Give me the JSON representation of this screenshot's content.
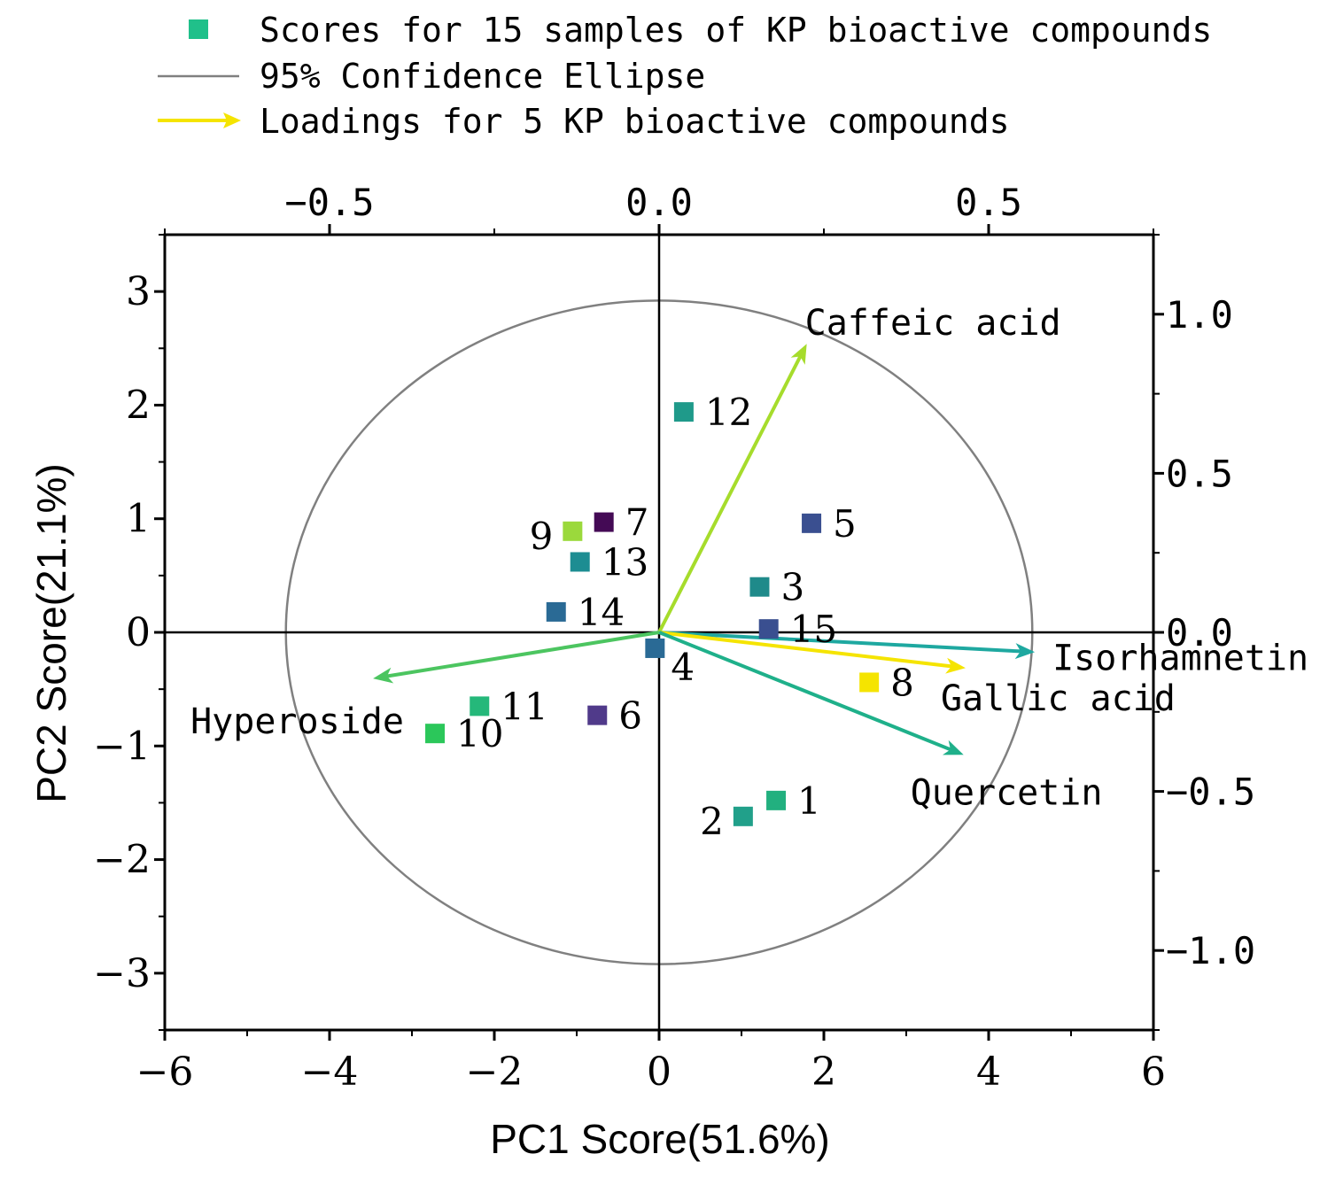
{
  "chart_data": {
    "type": "scatter",
    "title": "",
    "xlabel": "PC1 Score(51.6%)",
    "ylabel": "PC2 Score(21.1%)",
    "xlim": [
      -6,
      6
    ],
    "ylim": [
      -3.5,
      3.5
    ],
    "x_ticks": [
      -6,
      -4,
      -2,
      0,
      2,
      4,
      6
    ],
    "y_ticks": [
      -3,
      -2,
      -1,
      0,
      1,
      2,
      3
    ],
    "x_tick_labels": [
      "−6",
      "−4",
      "−2",
      "0",
      "2",
      "4",
      "6"
    ],
    "y_tick_labels": [
      "−3",
      "−2",
      "−1",
      "0",
      "1",
      "2",
      "3"
    ],
    "top_axis": {
      "lim": [
        -0.75,
        0.75
      ],
      "ticks": [
        -0.5,
        0.0,
        0.5
      ],
      "tick_labels": [
        "−0.5",
        "0.0",
        "0.5"
      ]
    },
    "right_axis": {
      "lim": [
        -1.25,
        1.25
      ],
      "ticks": [
        -1.0,
        -0.5,
        0.0,
        0.5,
        1.0
      ],
      "tick_labels": [
        "−1.0",
        "−0.5",
        "0.0",
        "0.5",
        "1.0"
      ]
    },
    "legend": {
      "position": "top",
      "entries": [
        {
          "kind": "marker",
          "color": "#20c08a",
          "label": "Scores for 15 samples of KP bioactive compounds"
        },
        {
          "kind": "line",
          "color": "#808080",
          "label": "95% Confidence Ellipse"
        },
        {
          "kind": "arrow",
          "color": "#f5e400",
          "label": "Loadings for 5 KP bioactive compounds"
        }
      ]
    },
    "ellipse": {
      "cx": 0,
      "cy": 0,
      "rx": 4.53,
      "ry": 2.92,
      "color": "#808080"
    },
    "scores": [
      {
        "label": "1",
        "x": 1.42,
        "y": -1.48,
        "color": "#22b07f",
        "label_side": "right"
      },
      {
        "label": "2",
        "x": 1.02,
        "y": -1.62,
        "color": "#21a08a",
        "label_side": "left"
      },
      {
        "label": "3",
        "x": 1.22,
        "y": 0.4,
        "color": "#1f8a8a",
        "label_side": "right"
      },
      {
        "label": "4",
        "x": -0.05,
        "y": -0.14,
        "color": "#2a6a95",
        "label_side": "below-right"
      },
      {
        "label": "5",
        "x": 1.85,
        "y": 0.96,
        "color": "#3a4f90",
        "label_side": "right"
      },
      {
        "label": "6",
        "x": -0.75,
        "y": -0.73,
        "color": "#503a8a",
        "label_side": "right"
      },
      {
        "label": "7",
        "x": -0.67,
        "y": 0.97,
        "color": "#440a55",
        "label_side": "right"
      },
      {
        "label": "8",
        "x": 2.55,
        "y": -0.44,
        "color": "#f5e400",
        "label_side": "right"
      },
      {
        "label": "9",
        "x": -1.05,
        "y": 0.89,
        "color": "#9bd93c",
        "label_side": "left"
      },
      {
        "label": "10",
        "x": -2.72,
        "y": -0.89,
        "color": "#2bc75a",
        "label_side": "right"
      },
      {
        "label": "11",
        "x": -2.18,
        "y": -0.65,
        "color": "#25b87a",
        "label_side": "right"
      },
      {
        "label": "12",
        "x": 0.3,
        "y": 1.94,
        "color": "#1f9a8a",
        "label_side": "right"
      },
      {
        "label": "13",
        "x": -0.96,
        "y": 0.62,
        "color": "#1d8d92",
        "label_side": "right"
      },
      {
        "label": "14",
        "x": -1.25,
        "y": 0.18,
        "color": "#2a6a95",
        "label_side": "right"
      },
      {
        "label": "15",
        "x": 1.33,
        "y": 0.03,
        "color": "#3a4f90",
        "label_side": "right"
      }
    ],
    "loadings": [
      {
        "label": "Caffeic acid",
        "x": 0.224,
        "y": 0.907,
        "color": "#a6dc2c"
      },
      {
        "label": "Isorhamnetin",
        "x": 0.57,
        "y": -0.062,
        "color": "#1ea8a0"
      },
      {
        "label": "Gallic acid",
        "x": 0.465,
        "y": -0.112,
        "color": "#f5e400"
      },
      {
        "label": "Quercetin",
        "x": 0.462,
        "y": -0.385,
        "color": "#1fb08a"
      },
      {
        "label": "Hyperoside",
        "x": -0.434,
        "y": -0.145,
        "color": "#4cc560"
      }
    ]
  }
}
